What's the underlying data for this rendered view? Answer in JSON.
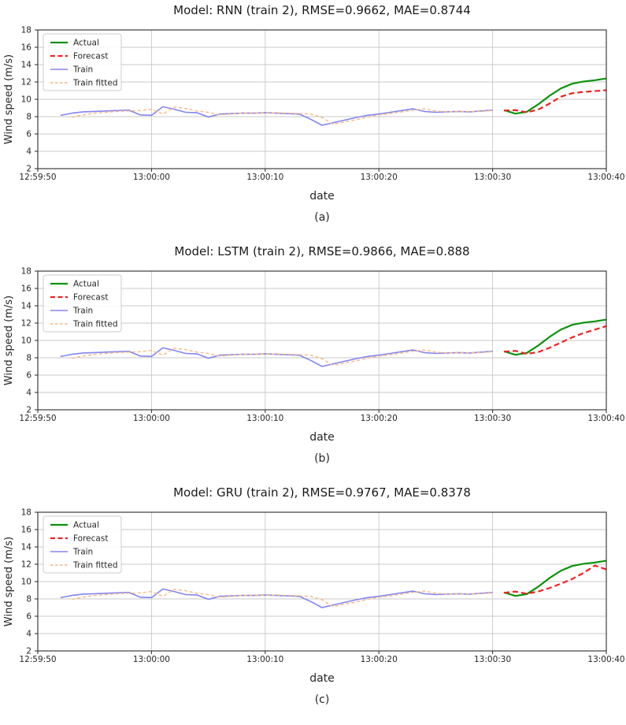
{
  "figure": {
    "background": "#ffffff",
    "axis_color": "#2a2a2a",
    "grid_color": "#c9c9c9"
  },
  "chart_data": [
    {
      "type": "line",
      "model": "RNN",
      "title": "Model: RNN (train 2), RMSE=0.9662, MAE=0.8744",
      "rmse": "0.9662",
      "mae": "0.8744",
      "caption": "(a)",
      "xlabel": "date",
      "ylabel": "Wind speed (m/s)",
      "x_tick_labels": [
        "12:59:50",
        "13:00:00",
        "13:00:10",
        "13:00:20",
        "13:00:30",
        "13:00:40"
      ],
      "x_tick_pos_s": [
        0,
        10,
        20,
        30,
        40,
        50
      ],
      "xlim_s": [
        0,
        50
      ],
      "y_tick_labels": [
        "2",
        "4",
        "6",
        "8",
        "10",
        "12",
        "14",
        "16",
        "18"
      ],
      "y_tick_values": [
        2,
        4,
        6,
        8,
        10,
        12,
        14,
        16,
        18
      ],
      "ylim": [
        2,
        18
      ],
      "grid": true,
      "legend_position": "upper left",
      "series": [
        {
          "name": "Actual",
          "color": "#0a930a",
          "style": "solid",
          "width": 2.2,
          "x_start_s": 41,
          "x_step_s": 1,
          "values": [
            8.75,
            8.35,
            8.55,
            9.4,
            10.4,
            11.25,
            11.8,
            12.05,
            12.2,
            12.4
          ]
        },
        {
          "name": "Forecast",
          "color": "#ee2222",
          "style": "dashed",
          "dash": "7,4",
          "width": 2.2,
          "x_start_s": 41,
          "x_step_s": 1,
          "values": [
            8.7,
            8.75,
            8.5,
            8.8,
            9.5,
            10.3,
            10.7,
            10.85,
            10.95,
            11.05
          ]
        },
        {
          "name": "Train",
          "color": "#8484f0",
          "style": "solid",
          "width": 1.6,
          "x_start_s": 2,
          "x_step_s": 1,
          "values": [
            8.15,
            8.4,
            8.55,
            8.6,
            8.65,
            8.7,
            8.75,
            8.2,
            8.15,
            9.15,
            8.85,
            8.5,
            8.45,
            7.95,
            8.3,
            8.35,
            8.4,
            8.4,
            8.45,
            8.4,
            8.35,
            8.3,
            7.7,
            7.0,
            7.3,
            7.6,
            7.9,
            8.15,
            8.3,
            8.5,
            8.7,
            8.9,
            8.6,
            8.5,
            8.55,
            8.6,
            8.55,
            8.65,
            8.75
          ]
        },
        {
          "name": "Train fitted",
          "color": "#f8b97e",
          "style": "dashed",
          "dash": "4,3",
          "width": 1.4,
          "x_start_s": 3,
          "x_step_s": 1,
          "values": [
            7.95,
            8.2,
            8.4,
            8.5,
            8.6,
            8.65,
            8.7,
            8.85,
            8.3,
            9.1,
            8.95,
            8.65,
            8.5,
            8.2,
            8.3,
            8.4,
            8.45,
            8.4,
            8.45,
            8.4,
            8.35,
            8.3,
            7.9,
            7.1,
            7.4,
            7.65,
            7.95,
            8.2,
            8.35,
            8.55,
            8.75,
            8.9,
            8.65,
            8.55,
            8.6,
            8.6,
            8.6,
            8.7
          ]
        }
      ]
    },
    {
      "type": "line",
      "model": "LSTM",
      "title": "Model: LSTM (train 2), RMSE=0.9866, MAE=0.888",
      "rmse": "0.9866",
      "mae": "0.888",
      "caption": "(b)",
      "xlabel": "date",
      "ylabel": "Wind speed (m/s)",
      "x_tick_labels": [
        "12:59:50",
        "13:00:00",
        "13:00:10",
        "13:00:20",
        "13:00:30",
        "13:00:40"
      ],
      "x_tick_pos_s": [
        0,
        10,
        20,
        30,
        40,
        50
      ],
      "xlim_s": [
        0,
        50
      ],
      "y_tick_labels": [
        "2",
        "4",
        "6",
        "8",
        "10",
        "12",
        "14",
        "16",
        "18"
      ],
      "y_tick_values": [
        2,
        4,
        6,
        8,
        10,
        12,
        14,
        16,
        18
      ],
      "ylim": [
        2,
        18
      ],
      "grid": true,
      "legend_position": "upper left",
      "series": [
        {
          "name": "Actual",
          "color": "#0a930a",
          "style": "solid",
          "width": 2.2,
          "x_start_s": 41,
          "x_step_s": 1,
          "values": [
            8.75,
            8.35,
            8.55,
            9.4,
            10.4,
            11.25,
            11.8,
            12.05,
            12.2,
            12.4
          ]
        },
        {
          "name": "Forecast",
          "color": "#ee2222",
          "style": "dashed",
          "dash": "7,4",
          "width": 2.2,
          "x_start_s": 41,
          "x_step_s": 1,
          "values": [
            8.7,
            8.8,
            8.45,
            8.65,
            9.15,
            9.75,
            10.35,
            10.85,
            11.25,
            11.65
          ]
        },
        {
          "name": "Train",
          "color": "#8484f0",
          "style": "solid",
          "width": 1.6,
          "x_start_s": 2,
          "x_step_s": 1,
          "values": [
            8.15,
            8.4,
            8.55,
            8.6,
            8.65,
            8.7,
            8.75,
            8.2,
            8.15,
            9.15,
            8.85,
            8.5,
            8.45,
            7.95,
            8.3,
            8.35,
            8.4,
            8.4,
            8.45,
            8.4,
            8.35,
            8.3,
            7.7,
            7.0,
            7.3,
            7.6,
            7.9,
            8.15,
            8.3,
            8.5,
            8.7,
            8.9,
            8.6,
            8.5,
            8.55,
            8.6,
            8.55,
            8.65,
            8.75
          ]
        },
        {
          "name": "Train fitted",
          "color": "#f8b97e",
          "style": "dashed",
          "dash": "4,3",
          "width": 1.4,
          "x_start_s": 3,
          "x_step_s": 1,
          "values": [
            7.95,
            8.2,
            8.4,
            8.5,
            8.6,
            8.65,
            8.7,
            8.85,
            8.3,
            9.1,
            8.95,
            8.65,
            8.5,
            8.2,
            8.3,
            8.4,
            8.45,
            8.4,
            8.45,
            8.4,
            8.35,
            8.3,
            7.9,
            7.1,
            7.4,
            7.65,
            7.95,
            8.2,
            8.35,
            8.55,
            8.75,
            8.9,
            8.65,
            8.55,
            8.6,
            8.6,
            8.6,
            8.7
          ]
        }
      ]
    },
    {
      "type": "line",
      "model": "GRU",
      "title": "Model: GRU (train 2), RMSE=0.9767, MAE=0.8378",
      "rmse": "0.9767",
      "mae": "0.8378",
      "caption": "(c)",
      "xlabel": "date",
      "ylabel": "Wind speed (m/s)",
      "x_tick_labels": [
        "12:59:50",
        "13:00:00",
        "13:00:10",
        "13:00:20",
        "13:00:30",
        "13:00:40"
      ],
      "x_tick_pos_s": [
        0,
        10,
        20,
        30,
        40,
        50
      ],
      "xlim_s": [
        0,
        50
      ],
      "y_tick_labels": [
        "2",
        "4",
        "6",
        "8",
        "10",
        "12",
        "14",
        "16",
        "18"
      ],
      "y_tick_values": [
        2,
        4,
        6,
        8,
        10,
        12,
        14,
        16,
        18
      ],
      "ylim": [
        2,
        18
      ],
      "grid": true,
      "legend_position": "upper left",
      "series": [
        {
          "name": "Actual",
          "color": "#0a930a",
          "style": "solid",
          "width": 2.2,
          "x_start_s": 41,
          "x_step_s": 1,
          "values": [
            8.75,
            8.35,
            8.55,
            9.4,
            10.4,
            11.25,
            11.8,
            12.05,
            12.2,
            12.4
          ]
        },
        {
          "name": "Forecast",
          "color": "#ee2222",
          "style": "dashed",
          "dash": "7,4",
          "width": 2.2,
          "x_start_s": 41,
          "x_step_s": 1,
          "values": [
            8.7,
            8.85,
            8.6,
            8.85,
            9.25,
            9.75,
            10.3,
            11.0,
            11.85,
            11.4
          ]
        },
        {
          "name": "Train",
          "color": "#8484f0",
          "style": "solid",
          "width": 1.6,
          "x_start_s": 2,
          "x_step_s": 1,
          "values": [
            8.15,
            8.4,
            8.55,
            8.6,
            8.65,
            8.7,
            8.75,
            8.2,
            8.15,
            9.15,
            8.85,
            8.5,
            8.45,
            7.95,
            8.3,
            8.35,
            8.4,
            8.4,
            8.45,
            8.4,
            8.35,
            8.3,
            7.7,
            7.0,
            7.3,
            7.6,
            7.9,
            8.15,
            8.3,
            8.5,
            8.7,
            8.9,
            8.6,
            8.5,
            8.55,
            8.6,
            8.55,
            8.65,
            8.75
          ]
        },
        {
          "name": "Train fitted",
          "color": "#f8b97e",
          "style": "dashed",
          "dash": "4,3",
          "width": 1.4,
          "x_start_s": 3,
          "x_step_s": 1,
          "values": [
            7.95,
            8.2,
            8.4,
            8.5,
            8.6,
            8.65,
            8.7,
            8.85,
            8.3,
            9.1,
            8.95,
            8.65,
            8.5,
            8.2,
            8.3,
            8.4,
            8.45,
            8.4,
            8.45,
            8.4,
            8.35,
            8.3,
            7.9,
            7.1,
            7.4,
            7.65,
            7.95,
            8.2,
            8.35,
            8.55,
            8.75,
            8.9,
            8.65,
            8.55,
            8.6,
            8.6,
            8.6,
            8.7
          ]
        }
      ]
    }
  ]
}
